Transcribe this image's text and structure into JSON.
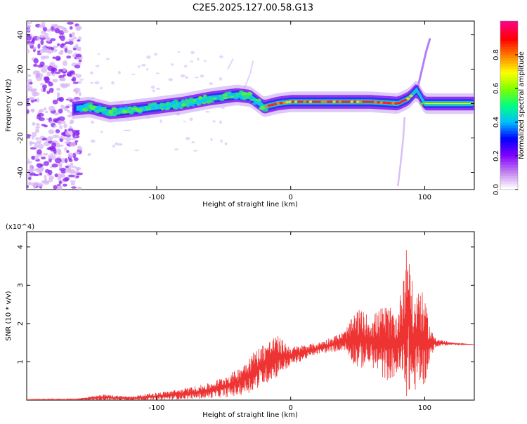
{
  "title": "C2E5.2025.127.00.58.G13",
  "top_plot": {
    "xlabel": "Height of straight line (km)",
    "ylabel": "Frequency (Hz)",
    "colorbar_label": "Normalized spectral amplitude"
  },
  "bottom_plot": {
    "xlabel": "Height of straight line (km)",
    "ylabel": "SNR (10 * v/v)",
    "multiplier": "(x10^4)"
  },
  "chart_data": [
    {
      "type": "heatmap",
      "title": "C2E5.2025.127.00.58.G13",
      "xlabel": "Height of straight line (km)",
      "ylabel": "Frequency (Hz)",
      "xlim": [
        -197,
        137
      ],
      "ylim": [
        -50,
        48
      ],
      "x_ticks": [
        -100,
        0,
        100
      ],
      "y_ticks": [
        -40,
        -20,
        0,
        20,
        40
      ],
      "colorbar": {
        "label": "Normalized spectral amplitude",
        "range": [
          0,
          1
        ],
        "ticks": [
          "0.0",
          "0.2",
          "0.4",
          "0.6",
          "0.8"
        ],
        "colors": [
          "#ffffff",
          "#c080f0",
          "#8000ff",
          "#0000ff",
          "#00c0ff",
          "#00ff80",
          "#80ff00",
          "#ffff00",
          "#ff8000",
          "#ff0000",
          "#ff0080"
        ]
      },
      "ridge": {
        "x": [
          -163,
          -150,
          -135,
          -120,
          -100,
          -80,
          -60,
          -40,
          -30,
          -20,
          -10,
          0,
          20,
          40,
          60,
          80,
          88,
          94,
          100,
          137
        ],
        "frequency": [
          -3,
          -2,
          -5,
          -4,
          -2,
          0,
          3,
          5,
          4,
          -2,
          0,
          1,
          1,
          1,
          1,
          0,
          3,
          8,
          0,
          0
        ]
      }
    },
    {
      "type": "line",
      "xlabel": "Height of straight line (km)",
      "ylabel": "SNR (10 * v/v)",
      "y_multiplier": "x10^4",
      "xlim": [
        -197,
        137
      ],
      "ylim": [
        0,
        4.4
      ],
      "x_ticks": [
        -100,
        0,
        100
      ],
      "y_ticks": [
        1,
        2,
        3,
        4
      ],
      "color": "#ee3333",
      "envelope": {
        "x": [
          -197,
          -160,
          -140,
          -120,
          -100,
          -80,
          -60,
          -40,
          -30,
          -20,
          -10,
          0,
          20,
          40,
          50,
          60,
          70,
          80,
          85,
          88,
          92,
          95,
          100,
          105,
          110,
          120,
          137
        ],
        "upper": [
          0.02,
          0.03,
          0.15,
          0.1,
          0.2,
          0.3,
          0.45,
          0.8,
          1.2,
          1.5,
          1.7,
          1.4,
          1.5,
          1.8,
          2.4,
          2.2,
          2.5,
          2.3,
          3.8,
          4.3,
          2.5,
          3.2,
          2.6,
          1.8,
          1.6,
          1.5,
          1.45
        ],
        "lower": [
          0.0,
          0.0,
          0.0,
          0.0,
          0.0,
          0.02,
          0.05,
          0.1,
          0.2,
          0.4,
          0.6,
          0.9,
          1.2,
          1.3,
          0.8,
          0.9,
          0.5,
          0.6,
          0.1,
          0.05,
          0.2,
          0.3,
          0.4,
          1.2,
          1.4,
          1.45,
          1.45
        ]
      }
    }
  ]
}
